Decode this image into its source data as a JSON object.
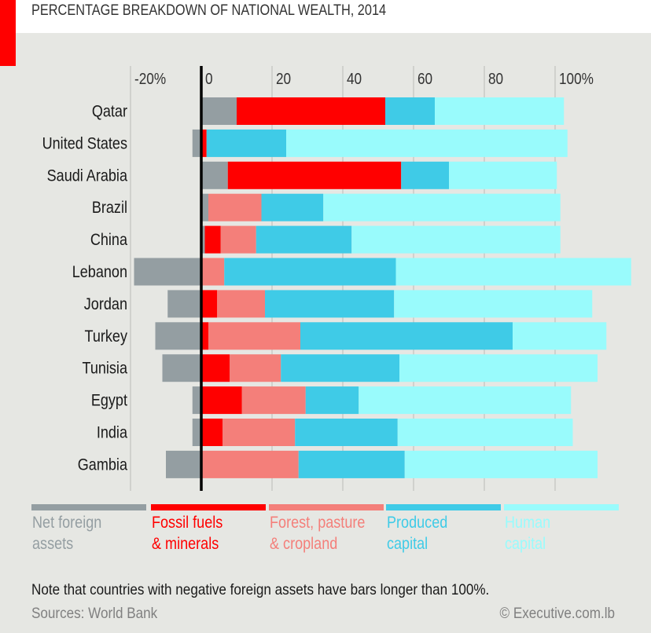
{
  "chart_data": {
    "type": "bar",
    "orientation": "horizontal",
    "stacked": true,
    "title": "PERCENTAGE BREAKDOWN OF NATIONAL WEALTH, 2014",
    "tick_labels": [
      "-20%",
      "0",
      "20",
      "40",
      "60",
      "80",
      "100%"
    ],
    "xlim": [
      -20,
      120
    ],
    "grid": true,
    "legend_position": "bottom",
    "categories": [
      "Qatar",
      "United States",
      "Saudi Arabia",
      "Brazil",
      "China",
      "Lebanon",
      "Jordan",
      "Turkey",
      "Tunisia",
      "Egypt",
      "India",
      "Gambia"
    ],
    "series": [
      {
        "name": "Net foreign\nassets",
        "color": "#949ea2",
        "values": [
          10,
          -2.5,
          7.5,
          2,
          1,
          -19,
          -9.5,
          -13,
          -11,
          -2.5,
          -2.5,
          -10
        ]
      },
      {
        "name": "Fossil fuels\n& minerals",
        "color": "#ff0000",
        "values": [
          42,
          1.5,
          49,
          0,
          4.5,
          0,
          4.5,
          2,
          8,
          11.5,
          6,
          0
        ]
      },
      {
        "name": "Forest, pasture\n& cropland",
        "color": "#f47f7a",
        "values": [
          0,
          0,
          0,
          15,
          10,
          6.5,
          13.5,
          26,
          14.5,
          18,
          20.5,
          27.5
        ]
      },
      {
        "name": "Produced\ncapital",
        "color": "#3fcbe7",
        "values": [
          14,
          22.5,
          13.5,
          17.5,
          27,
          48.5,
          36.5,
          60,
          33.5,
          15,
          29,
          30
        ]
      },
      {
        "name": "Human\ncapital",
        "color": "#99fbfc",
        "values": [
          36.5,
          79.5,
          30.5,
          67,
          59,
          66.5,
          56,
          26.5,
          56,
          60,
          49.5,
          54.5
        ]
      }
    ]
  },
  "note": "Note that countries with negative foreign assets have bars longer than 100%.",
  "sources": "Sources: World Bank",
  "credit": "© Executive.com.lb"
}
